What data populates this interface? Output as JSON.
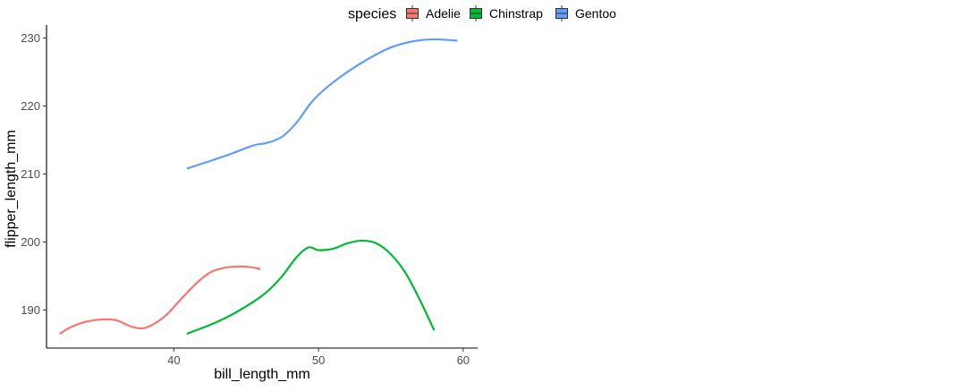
{
  "chart_data": {
    "type": "line",
    "title": "",
    "xlabel": "bill_length_mm",
    "ylabel": "flipper_length_mm",
    "xlim": [
      31.2,
      61.0
    ],
    "ylim": [
      184.4,
      231.9
    ],
    "x_ticks": [
      40,
      50,
      60
    ],
    "y_ticks": [
      190,
      200,
      210,
      220,
      230
    ],
    "grid": false,
    "legend": {
      "title": "species",
      "placement": "top",
      "entries": [
        {
          "label": "Adelie",
          "color": "#F8766D"
        },
        {
          "label": "Chinstrap",
          "color": "#00BA38"
        },
        {
          "label": "Gentoo",
          "color": "#619CFF"
        }
      ]
    },
    "series": [
      {
        "name": "Adelie",
        "color": "#F8766D",
        "x": [
          32.1,
          33.0,
          34.0,
          35.0,
          36.0,
          37.0,
          37.8,
          38.5,
          39.5,
          40.5,
          41.5,
          42.5,
          43.5,
          44.5,
          45.3,
          46.0
        ],
        "y": [
          186.5,
          187.6,
          188.3,
          188.6,
          188.5,
          187.6,
          187.3,
          187.8,
          189.3,
          191.6,
          193.8,
          195.5,
          196.2,
          196.4,
          196.3,
          196.0
        ]
      },
      {
        "name": "Chinstrap",
        "color": "#00BA38",
        "x": [
          40.9,
          42.5,
          44.0,
          45.5,
          46.5,
          47.5,
          48.5,
          49.3,
          50.0,
          51.0,
          52.0,
          53.0,
          54.0,
          55.0,
          56.0,
          57.0,
          58.0
        ],
        "y": [
          186.5,
          187.8,
          189.3,
          191.2,
          192.8,
          195.0,
          197.8,
          199.2,
          198.8,
          199.0,
          199.8,
          200.2,
          199.8,
          198.2,
          195.5,
          191.5,
          187.0
        ]
      },
      {
        "name": "Gentoo",
        "color": "#619CFF",
        "x": [
          40.9,
          42.5,
          44.0,
          45.5,
          46.5,
          47.5,
          48.5,
          49.5,
          50.5,
          52.0,
          53.5,
          55.0,
          56.5,
          58.0,
          59.6
        ],
        "y": [
          210.8,
          211.9,
          213.0,
          214.2,
          214.6,
          215.5,
          217.6,
          220.5,
          222.6,
          225.0,
          227.0,
          228.6,
          229.5,
          229.8,
          229.6
        ]
      }
    ]
  }
}
